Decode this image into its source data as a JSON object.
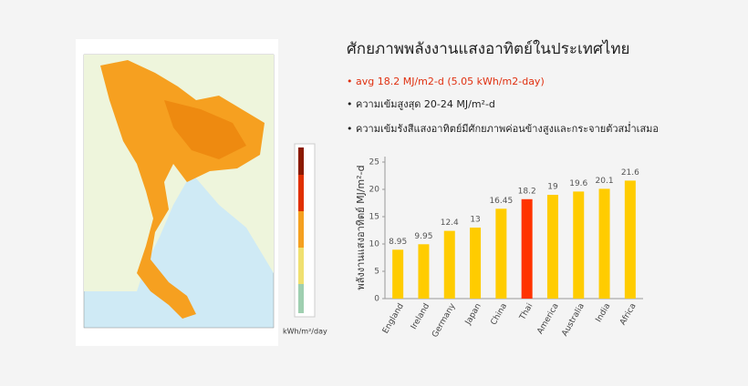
{
  "title": "ศักยภาพพลังงานแสงอาทิตย์ในประเทศไทย",
  "bullets": [
    "avg 18.2 MJ/m2-d (5.05 kWh/m2-day)",
    "ความเข้มสูงสุด 20-24 MJ/m²-d",
    "ความเข้มรังสีแสงอาทิตย์มีศักยภาพค่อนข้างสูงและกระจายตัวสม่ำเสมอ"
  ],
  "map": {
    "legend_unit": "kWh/m²/day"
  },
  "chart_data": {
    "type": "bar",
    "y_label": "พลังงานแสงอาทิตย์ MJ/m²-d",
    "categories": [
      "England",
      "Ireland",
      "Germany",
      "Japan",
      "China",
      "Thai",
      "America",
      "Australia",
      "India",
      "Africa"
    ],
    "values": [
      8.95,
      9.95,
      12.4,
      13,
      16.45,
      18.2,
      19,
      19.6,
      20.1,
      21.6
    ],
    "colors": [
      "#ffcc00",
      "#ffcc00",
      "#ffcc00",
      "#ffcc00",
      "#ffcc00",
      "#ff3300",
      "#ffcc00",
      "#ffcc00",
      "#ffcc00",
      "#ffcc00"
    ],
    "ylim": [
      0,
      26
    ],
    "yticks": [
      0,
      5,
      10,
      15,
      20,
      25
    ]
  }
}
